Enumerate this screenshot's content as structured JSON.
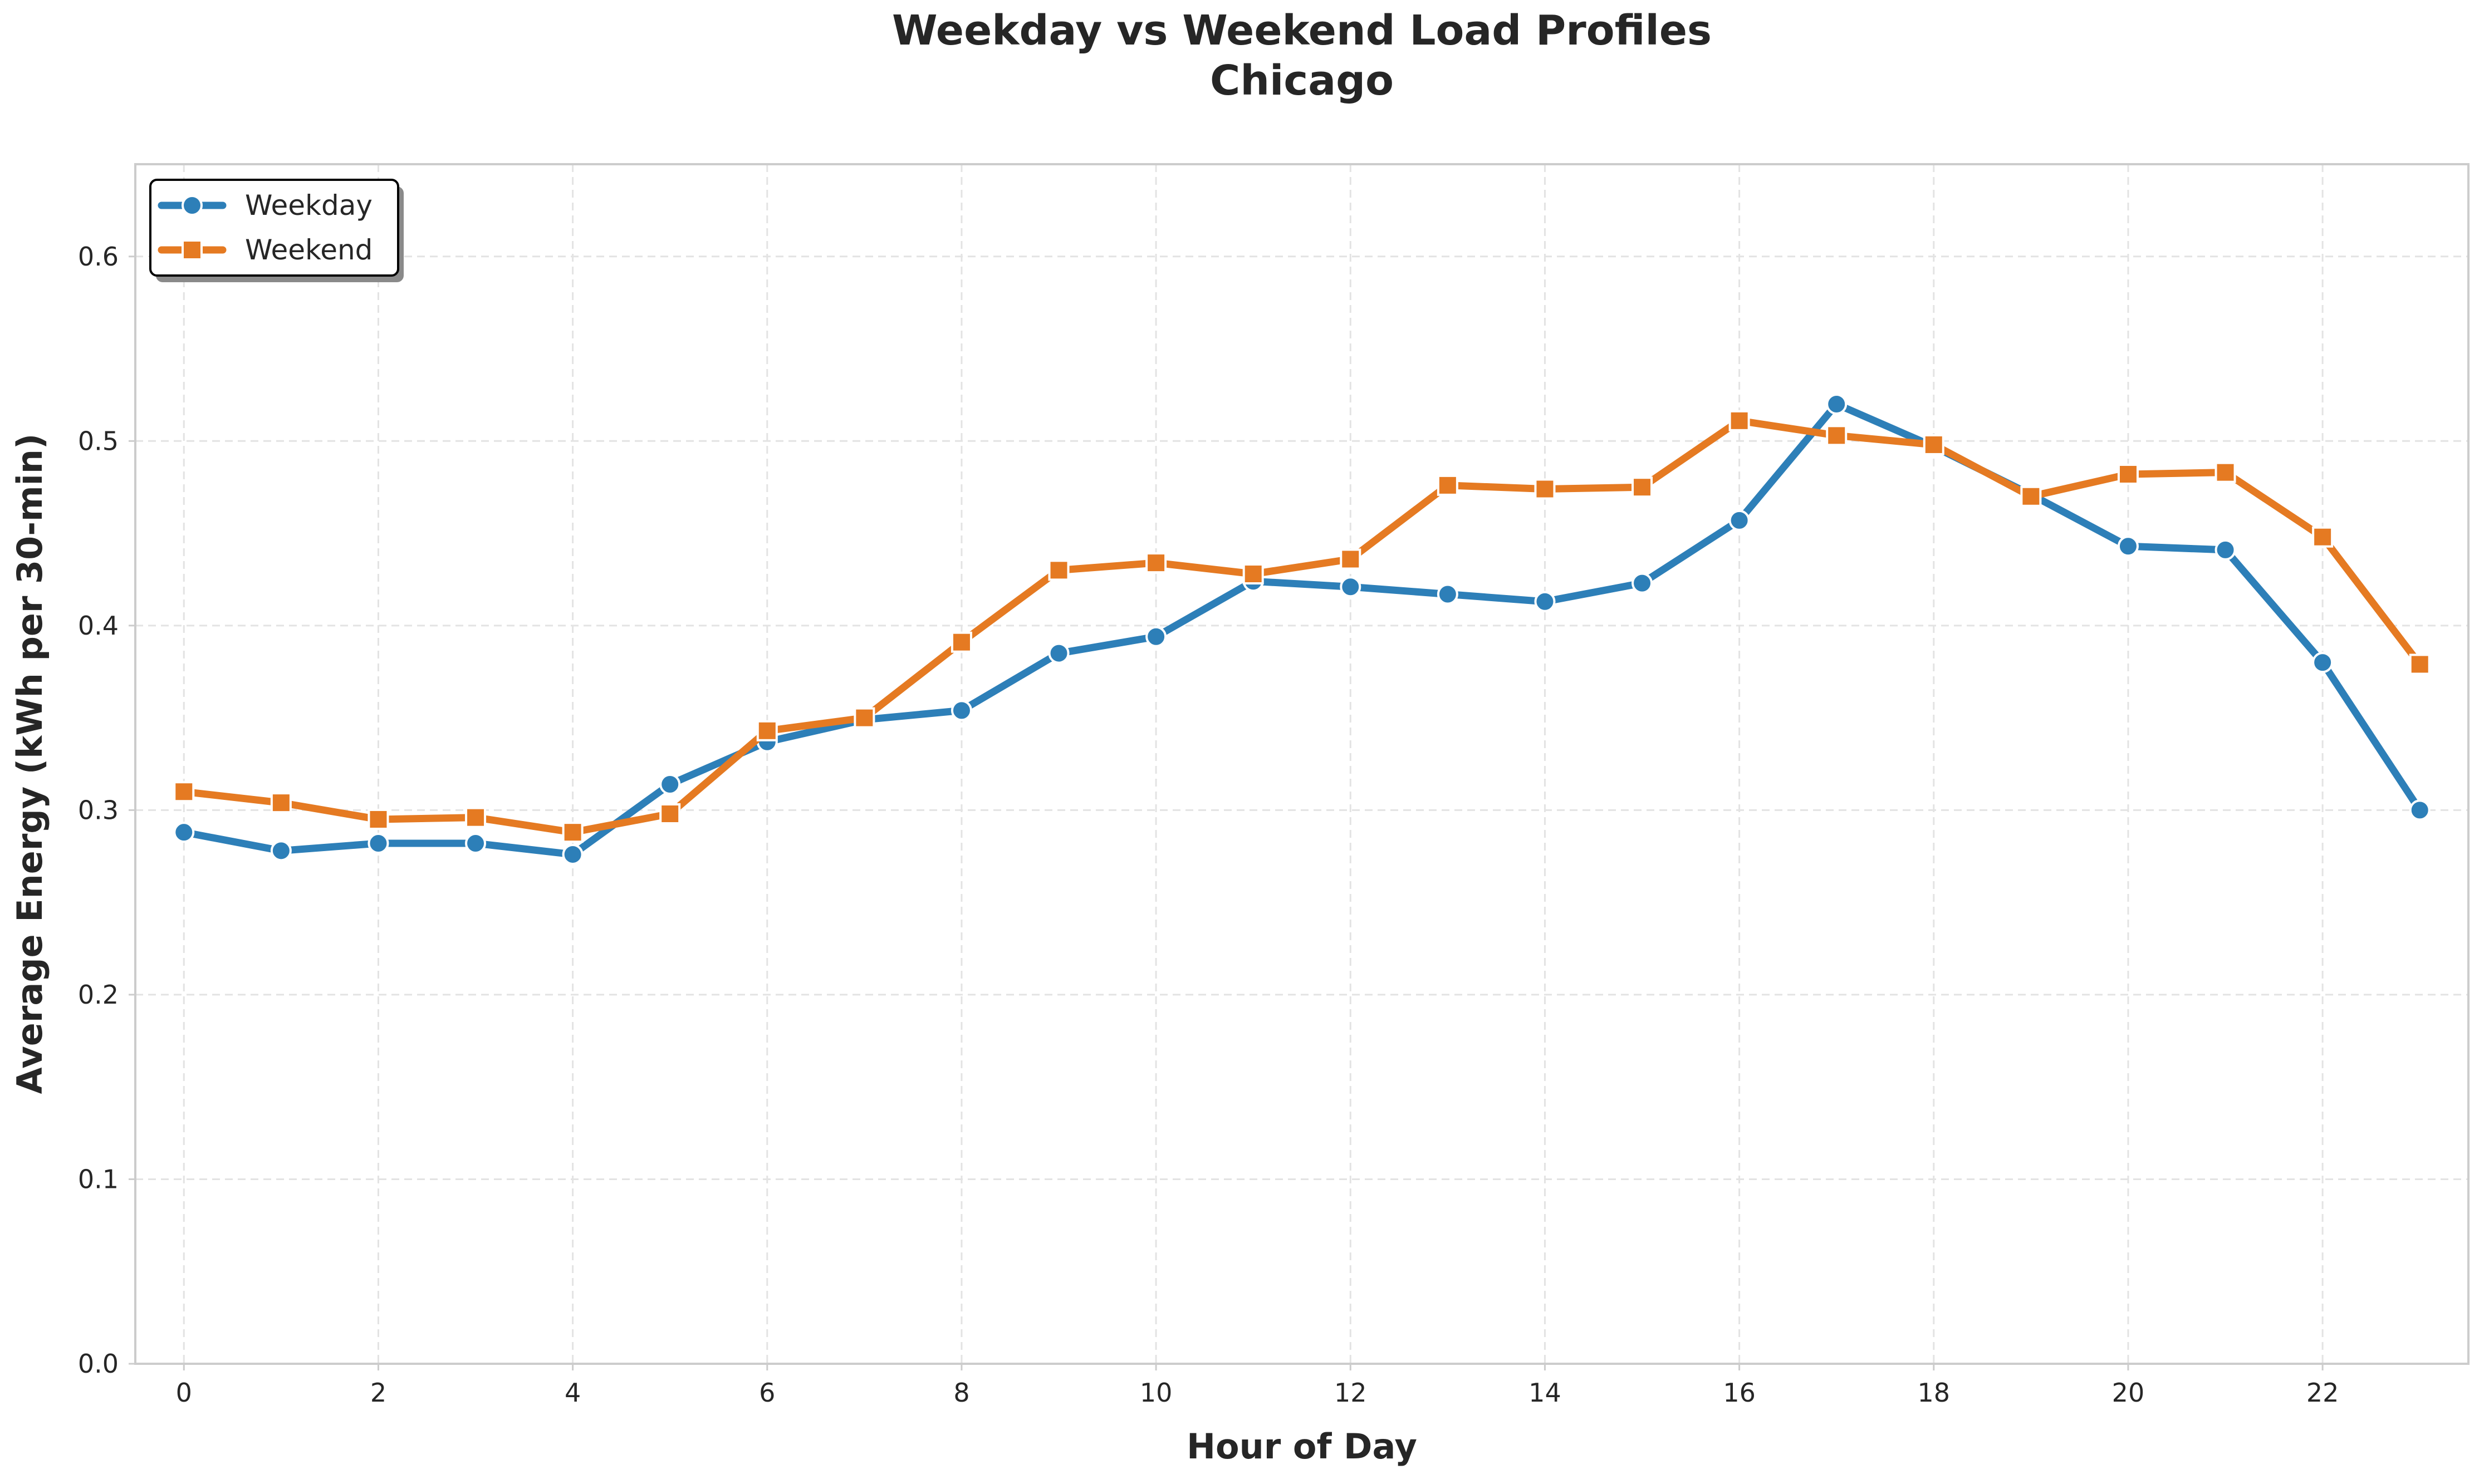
{
  "chart_data": {
    "type": "line",
    "title": "Weekday vs Weekend Load Profiles",
    "subtitle": "Chicago",
    "xlabel": "Hour of Day",
    "ylabel": "Average Energy (kWh per 30-min)",
    "x": [
      0,
      1,
      2,
      3,
      4,
      5,
      6,
      7,
      8,
      9,
      10,
      11,
      12,
      13,
      14,
      15,
      16,
      17,
      18,
      19,
      20,
      21,
      22,
      23
    ],
    "xticks": [
      0,
      2,
      4,
      6,
      8,
      10,
      12,
      14,
      16,
      18,
      20,
      22
    ],
    "yticks": [
      0.0,
      0.1,
      0.2,
      0.3,
      0.4,
      0.5,
      0.6
    ],
    "xlim": [
      -0.5,
      23.5
    ],
    "ylim": [
      0,
      0.65
    ],
    "grid": true,
    "legend_position": "top-left",
    "series": [
      {
        "name": "Weekday",
        "color": "#2d7fb8",
        "marker": "circle",
        "values": [
          0.288,
          0.278,
          0.282,
          0.282,
          0.276,
          0.314,
          0.337,
          0.349,
          0.354,
          0.385,
          0.394,
          0.424,
          0.421,
          0.417,
          0.413,
          0.423,
          0.457,
          0.52,
          0.497,
          0.471,
          0.443,
          0.441,
          0.38,
          0.3
        ]
      },
      {
        "name": "Weekend",
        "color": "#e57a22",
        "marker": "square",
        "values": [
          0.31,
          0.304,
          0.295,
          0.296,
          0.288,
          0.298,
          0.343,
          0.35,
          0.391,
          0.43,
          0.434,
          0.428,
          0.436,
          0.476,
          0.474,
          0.475,
          0.511,
          0.503,
          0.498,
          0.47,
          0.482,
          0.483,
          0.448,
          0.379
        ]
      }
    ]
  }
}
